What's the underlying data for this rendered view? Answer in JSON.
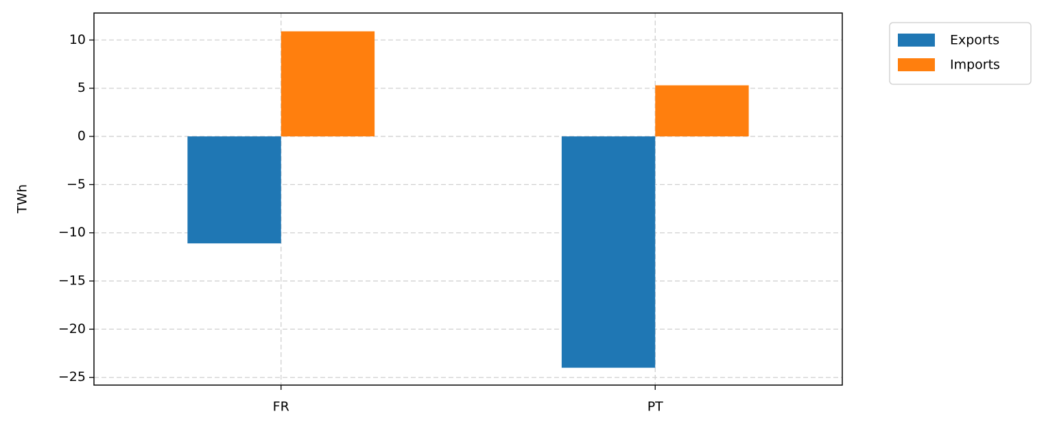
{
  "chart_data": {
    "type": "bar",
    "categories": [
      "FR",
      "PT"
    ],
    "series": [
      {
        "name": "Exports",
        "color": "#1f77b4",
        "values": [
          -11.1,
          -24.0
        ]
      },
      {
        "name": "Imports",
        "color": "#ff7f0e",
        "values": [
          10.9,
          5.3
        ]
      }
    ],
    "y_label": "TWh",
    "ylim": [
      -25.8,
      12.8
    ],
    "yticks": [
      {
        "value": -25,
        "label": "−25"
      },
      {
        "value": -20,
        "label": "−20"
      },
      {
        "value": -15,
        "label": "−15"
      },
      {
        "value": -10,
        "label": "−10"
      },
      {
        "value": -5,
        "label": "−5"
      },
      0,
      5,
      10
    ],
    "grid": true,
    "legend": "outside-upper-right"
  }
}
